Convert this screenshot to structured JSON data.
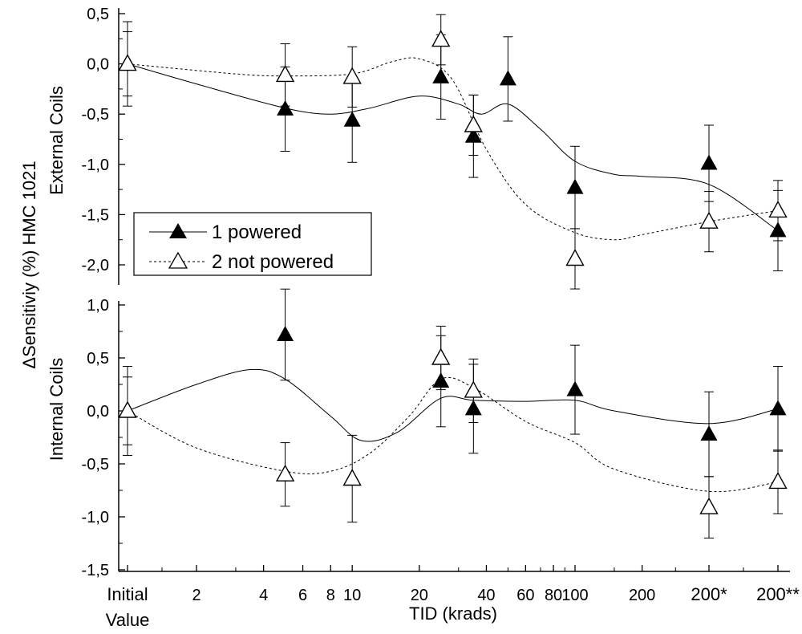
{
  "chart_data": [
    {
      "panel": "top",
      "type": "line",
      "ylabel": "External Coils",
      "ylim": [
        -2.0,
        0.5
      ],
      "yticks": [
        0.5,
        0.0,
        -0.5,
        -1.0,
        -1.5,
        -2.0
      ],
      "ytick_labels": [
        "0,5",
        "0,0",
        "-0,5",
        "-1,0",
        "-1,5",
        "-2,0"
      ],
      "series": [
        {
          "name": "1 powered",
          "marker": "filled-triangle",
          "line": "solid",
          "points": [
            {
              "x": "initial",
              "y": 0.0,
              "err": 0.32
            },
            {
              "x": 5,
              "y": -0.45,
              "err": 0.42
            },
            {
              "x": 10,
              "y": -0.56,
              "err": 0.42
            },
            {
              "x": 25,
              "y": -0.13,
              "err": 0.42
            },
            {
              "x": 35,
              "y": -0.72,
              "err": 0.41
            },
            {
              "x": 50,
              "y": -0.15,
              "err": 0.42
            },
            {
              "x": 100,
              "y": -1.23,
              "err": 0.41
            },
            {
              "x": "200*",
              "y": -0.99,
              "err": 0.38
            },
            {
              "x": "200**",
              "y": -1.66,
              "err": 0.4
            }
          ],
          "curve": [
            {
              "x": "initial",
              "y": 0.0
            },
            {
              "x": 2,
              "y": -0.2
            },
            {
              "x": 5,
              "y": -0.44
            },
            {
              "x": 8,
              "y": -0.5
            },
            {
              "x": 12,
              "y": -0.44
            },
            {
              "x": 20,
              "y": -0.32
            },
            {
              "x": 30,
              "y": -0.4
            },
            {
              "x": 38,
              "y": -0.5
            },
            {
              "x": 50,
              "y": -0.4
            },
            {
              "x": 70,
              "y": -0.65
            },
            {
              "x": 100,
              "y": -0.97
            },
            {
              "x": 150,
              "y": -1.1
            },
            {
              "x": 200,
              "y": -1.12
            },
            {
              "x": "200*",
              "y": -1.2
            },
            {
              "x": "200**",
              "y": -1.66
            }
          ]
        },
        {
          "name": "2 not powered",
          "marker": "open-triangle",
          "line": "dashed",
          "points": [
            {
              "x": "initial",
              "y": 0.0,
              "err": 0.42
            },
            {
              "x": 5,
              "y": -0.11,
              "err": 0.31
            },
            {
              "x": 10,
              "y": -0.13,
              "err": 0.3
            },
            {
              "x": 25,
              "y": 0.24,
              "err": 0.25
            },
            {
              "x": 35,
              "y": -0.61,
              "err": 0.3
            },
            {
              "x": 100,
              "y": -1.94,
              "err": 0.3
            },
            {
              "x": "200*",
              "y": -1.57,
              "err": 0.3
            },
            {
              "x": "200**",
              "y": -1.46,
              "err": 0.3
            }
          ],
          "curve": [
            {
              "x": "initial",
              "y": 0.0
            },
            {
              "x": 3,
              "y": -0.1
            },
            {
              "x": 5,
              "y": -0.12
            },
            {
              "x": 10,
              "y": -0.1
            },
            {
              "x": 15,
              "y": 0.02
            },
            {
              "x": 20,
              "y": 0.05
            },
            {
              "x": 28,
              "y": -0.15
            },
            {
              "x": 40,
              "y": -0.85
            },
            {
              "x": 60,
              "y": -1.4
            },
            {
              "x": 100,
              "y": -1.68
            },
            {
              "x": 150,
              "y": -1.75
            },
            {
              "x": 200,
              "y": -1.7
            },
            {
              "x": "200*",
              "y": -1.57
            },
            {
              "x": "200**",
              "y": -1.46
            }
          ]
        }
      ]
    },
    {
      "panel": "bottom",
      "type": "line",
      "ylabel": "Internal Coils",
      "ylim": [
        -1.5,
        1.0
      ],
      "yticks": [
        1.0,
        0.5,
        0.0,
        -0.5,
        -1.0,
        -1.5
      ],
      "ytick_labels": [
        "1,0",
        "0,5",
        "0,0",
        "-0,5",
        "-1,0",
        "-1,5"
      ],
      "series": [
        {
          "name": "1 powered",
          "marker": "filled-triangle",
          "line": "solid",
          "points": [
            {
              "x": "initial",
              "y": 0.0,
              "err": 0.32
            },
            {
              "x": 5,
              "y": 0.72,
              "err": 0.43
            },
            {
              "x": 25,
              "y": 0.28,
              "err": 0.43
            },
            {
              "x": 35,
              "y": 0.02,
              "err": 0.42
            },
            {
              "x": 100,
              "y": 0.2,
              "err": 0.42
            },
            {
              "x": "200*",
              "y": -0.22,
              "err": 0.4
            },
            {
              "x": "200**",
              "y": 0.02,
              "err": 0.4
            }
          ],
          "curve": [
            {
              "x": "initial",
              "y": 0.0
            },
            {
              "x": 2,
              "y": 0.25
            },
            {
              "x": 3.5,
              "y": 0.39
            },
            {
              "x": 5,
              "y": 0.3
            },
            {
              "x": 8,
              "y": -0.05
            },
            {
              "x": 11,
              "y": -0.28
            },
            {
              "x": 16,
              "y": -0.2
            },
            {
              "x": 25,
              "y": 0.12
            },
            {
              "x": 35,
              "y": 0.1
            },
            {
              "x": 60,
              "y": 0.09
            },
            {
              "x": 100,
              "y": 0.1
            },
            {
              "x": 150,
              "y": 0.0
            },
            {
              "x": "200*",
              "y": -0.12
            },
            {
              "x": "200**",
              "y": 0.02
            }
          ]
        },
        {
          "name": "2 not powered",
          "marker": "open-triangle",
          "line": "dashed",
          "points": [
            {
              "x": "initial",
              "y": 0.0,
              "err": 0.42
            },
            {
              "x": 5,
              "y": -0.6,
              "err": 0.3
            },
            {
              "x": 10,
              "y": -0.64,
              "err": 0.41
            },
            {
              "x": 25,
              "y": 0.5,
              "err": 0.3
            },
            {
              "x": 35,
              "y": 0.19,
              "err": 0.3
            },
            {
              "x": "200*",
              "y": -0.91,
              "err": 0.29
            },
            {
              "x": "200**",
              "y": -0.67,
              "err": 0.3
            }
          ],
          "curve": [
            {
              "x": "initial",
              "y": 0.0
            },
            {
              "x": 2,
              "y": -0.35
            },
            {
              "x": 5,
              "y": -0.57
            },
            {
              "x": 8,
              "y": -0.57
            },
            {
              "x": 12,
              "y": -0.4
            },
            {
              "x": 18,
              "y": -0.05
            },
            {
              "x": 25,
              "y": 0.3
            },
            {
              "x": 35,
              "y": 0.22
            },
            {
              "x": 60,
              "y": -0.1
            },
            {
              "x": 100,
              "y": -0.3
            },
            {
              "x": 150,
              "y": -0.55
            },
            {
              "x": "200*",
              "y": -0.76
            },
            {
              "x": "200**",
              "y": -0.67
            }
          ]
        }
      ]
    }
  ],
  "x_axis": {
    "label": "TID (krads)",
    "ticks": [
      {
        "x": "initial",
        "line1": "Initial",
        "line2": "Value",
        "big": true
      },
      {
        "x": 2,
        "line1": "2",
        "line2": "",
        "big": false
      },
      {
        "x": 4,
        "line1": "4",
        "line2": "",
        "big": false
      },
      {
        "x": 6,
        "line1": "6",
        "line2": "",
        "big": false
      },
      {
        "x": 8,
        "line1": "8",
        "line2": "",
        "big": false
      },
      {
        "x": 10,
        "line1": "10",
        "line2": "",
        "big": false
      },
      {
        "x": 20,
        "line1": "20",
        "line2": "",
        "big": false
      },
      {
        "x": 40,
        "line1": "40",
        "line2": "",
        "big": false
      },
      {
        "x": 60,
        "line1": "60",
        "line2": "",
        "big": false
      },
      {
        "x": 80,
        "line1": "80",
        "line2": "",
        "big": false
      },
      {
        "x": 100,
        "line1": "100",
        "line2": "",
        "big": false
      },
      {
        "x": 200,
        "line1": "200",
        "line2": "",
        "big": false
      },
      {
        "x": "200*",
        "line1": "200*",
        "line2": "",
        "big": true
      },
      {
        "x": "200**",
        "line1": "200**",
        "line2": "",
        "big": true
      }
    ]
  },
  "shared_ylabel": "ΔSensitiviy (%) HMC 1021",
  "legend": {
    "position": "top-panel lower-left",
    "entries": [
      "1 powered",
      "2 not powered"
    ]
  }
}
